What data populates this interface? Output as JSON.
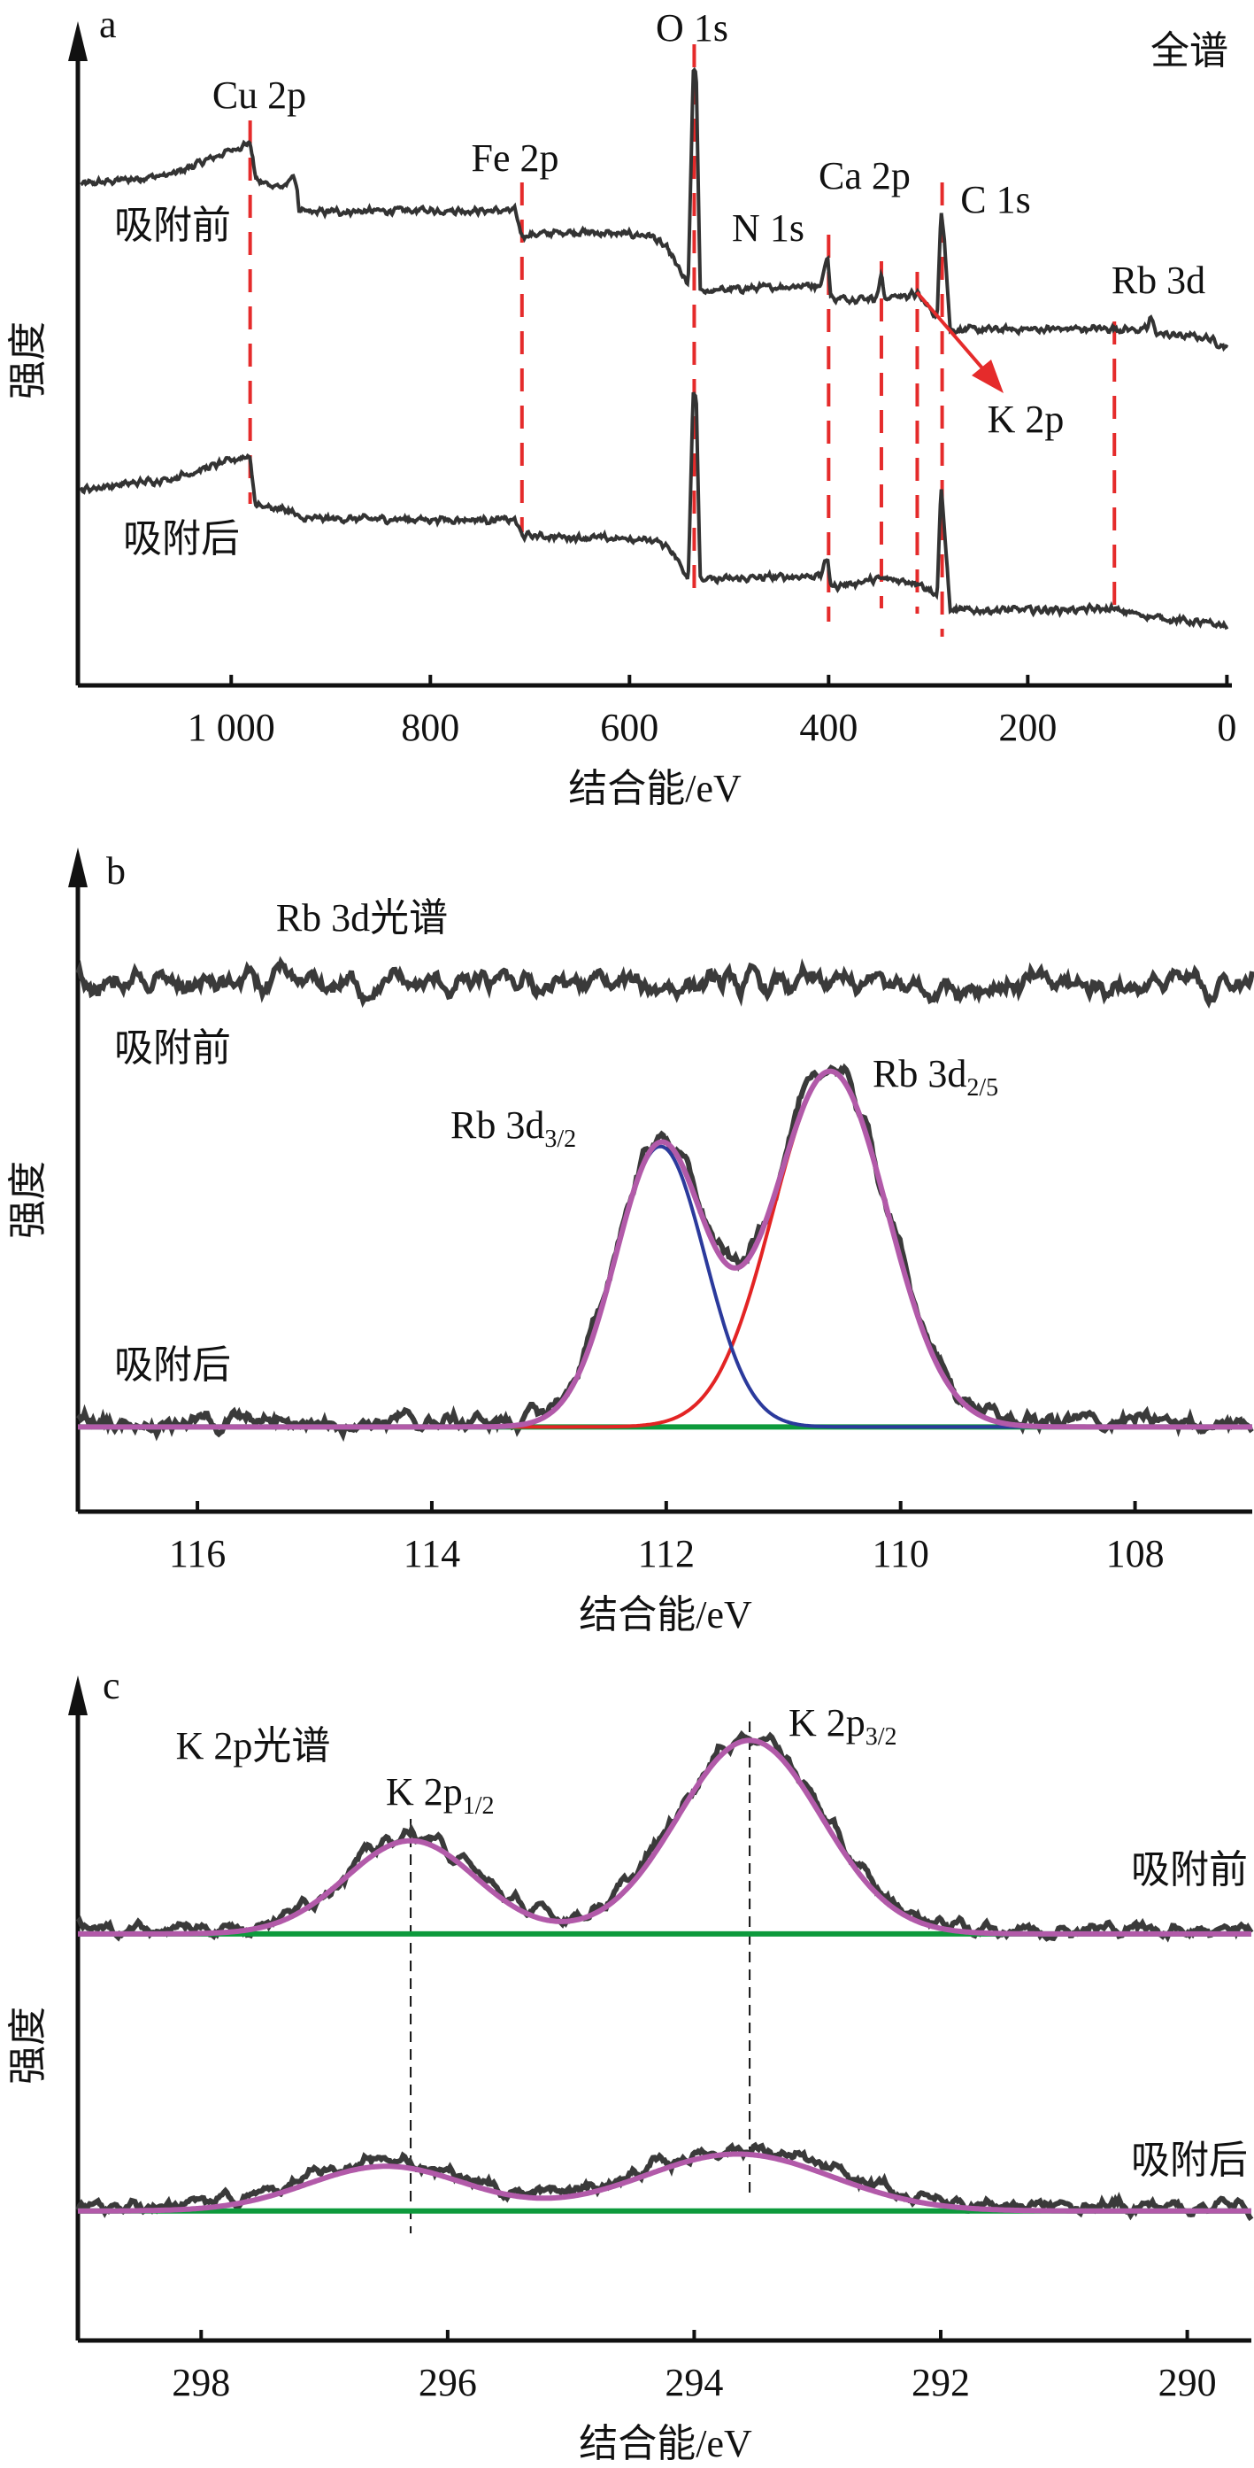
{
  "chart_data": [
    {
      "panel": "a",
      "type": "line",
      "title": "全谱",
      "xlabel": "结合能/eV",
      "ylabel": "强度",
      "xlim": [
        1154,
        -5
      ],
      "ylim": [
        0,
        100
      ],
      "x_reversed": true,
      "grid": false,
      "xticks": [
        1000,
        800,
        600,
        400,
        200,
        0
      ],
      "xtick_labels": [
        "1 000",
        "800",
        "600",
        "400",
        "200",
        "0"
      ],
      "colors": {
        "trace": "#333333",
        "marker_line": "#e52b2b",
        "arrow": "#e52b2b"
      },
      "series": [
        {
          "name": "吸附前",
          "points": [
            [
              1151,
              77.5
            ],
            [
              1060,
              79
            ],
            [
              989,
              83.5
            ],
            [
              981,
              84
            ],
            [
              976,
              79
            ],
            [
              973,
              77.9
            ],
            [
              945,
              77
            ],
            [
              940,
              79
            ],
            [
              934,
              77.5
            ],
            [
              932,
              73.2
            ],
            [
              800,
              73.5
            ],
            [
              715,
              73.4
            ],
            [
              708,
              69.6
            ],
            [
              660,
              70.2
            ],
            [
              578,
              69.6
            ],
            [
              561,
              67.3
            ],
            [
              541,
              61.8
            ],
            [
              536,
              94.9
            ],
            [
              533,
              94.9
            ],
            [
              529,
              61
            ],
            [
              408,
              62
            ],
            [
              401,
              66.5
            ],
            [
              398,
              60.5
            ],
            [
              396,
              59.8
            ],
            [
              352,
              60
            ],
            [
              347,
              63.5
            ],
            [
              344,
              60
            ],
            [
              311,
              60.5
            ],
            [
              291,
              57
            ],
            [
              287,
              73.6
            ],
            [
              284,
              70
            ],
            [
              278,
              55
            ],
            [
              117,
              55.2
            ],
            [
              80,
              55
            ],
            [
              77,
              57
            ],
            [
              70,
              54.4
            ],
            [
              20,
              53.8
            ],
            [
              0,
              52.3
            ]
          ]
        },
        {
          "name": "吸附后",
          "points": [
            [
              1151,
              30.3
            ],
            [
              1060,
              32
            ],
            [
              989,
              35.3
            ],
            [
              981,
              35.5
            ],
            [
              976,
              28
            ],
            [
              940,
              27
            ],
            [
              932,
              25.8
            ],
            [
              715,
              25.6
            ],
            [
              708,
              23.2
            ],
            [
              578,
              22.5
            ],
            [
              561,
              21.6
            ],
            [
              541,
              16.7
            ],
            [
              536,
              45.6
            ],
            [
              533,
              45
            ],
            [
              529,
              16.3
            ],
            [
              408,
              17
            ],
            [
              401,
              19.9
            ],
            [
              398,
              15.5
            ],
            [
              396,
              15.3
            ],
            [
              347,
              16.5
            ],
            [
              311,
              16
            ],
            [
              291,
              14
            ],
            [
              287,
              30.7
            ],
            [
              284,
              25
            ],
            [
              278,
              11.6
            ],
            [
              117,
              11.8
            ],
            [
              70,
              10.5
            ],
            [
              0,
              9.2
            ]
          ]
        }
      ],
      "peak_markers": [
        {
          "label": "Cu 2p",
          "ev": 981
        },
        {
          "label": "Fe 2p",
          "ev": 708
        },
        {
          "label": "O 1s",
          "ev": 535
        },
        {
          "label": "N 1s",
          "ev": 400
        },
        {
          "label": "Ca 2p",
          "ev": 347
        },
        {
          "label": "K 2p",
          "ev": 311
        },
        {
          "label": "C 1s",
          "ev": 286
        },
        {
          "label": "Rb 3d",
          "ev": 113
        }
      ]
    },
    {
      "panel": "b",
      "type": "line",
      "title": "Rb 3d光谱",
      "xlabel": "结合能/eV",
      "ylabel": "强度",
      "xlim": [
        117.02,
        107.0
      ],
      "ylim": [
        0,
        100
      ],
      "x_reversed": true,
      "grid": false,
      "xticks": [
        116,
        114,
        112,
        110,
        108
      ],
      "xtick_labels": [
        "116",
        "114",
        "112",
        "110",
        "108"
      ],
      "colors": {
        "raw": "#3a3a3a",
        "envelope": "#b25aa9",
        "component_1": "#2b3a9c",
        "component_2": "#e32424",
        "background": "#0d9a3c"
      },
      "series": [
        {
          "name": "吸附前",
          "baseline": 81.5,
          "peaks": []
        },
        {
          "name": "吸附后",
          "baseline": 13.1,
          "peaks": [
            {
              "label": "Rb 3d",
              "sub": "3/2",
              "center": 112.05,
              "height": 43.4,
              "fwhm": 0.9
            },
            {
              "label": "Rb 3d",
              "sub": "2/5",
              "center": 110.6,
              "height": 55.0,
              "fwhm": 1.15
            }
          ]
        }
      ]
    },
    {
      "panel": "c",
      "type": "line",
      "title": "K 2p光谱",
      "xlabel": "结合能/eV",
      "ylabel": "强度",
      "xlim": [
        299.0,
        289.48
      ],
      "ylim": [
        0,
        100
      ],
      "x_reversed": true,
      "grid": false,
      "xticks": [
        298,
        296,
        294,
        292,
        290
      ],
      "xtick_labels": [
        "298",
        "296",
        "294",
        "292",
        "290"
      ],
      "colors": {
        "raw": "#3a3a3a",
        "envelope": "#b25aa9",
        "background": "#0d9a3c",
        "guide": "#111111"
      },
      "series": [
        {
          "name": "吸附前",
          "baseline": 62.8,
          "peaks": [
            {
              "label": "K 2p",
              "sub": "1/2",
              "center": 296.3,
              "height": 14.4,
              "fwhm": 1.24
            },
            {
              "label": "K 2p",
              "sub": "3/2",
              "center": 293.55,
              "height": 29.9,
              "fwhm": 1.37
            }
          ]
        },
        {
          "name": "吸附后",
          "baseline": 20.0,
          "peaks": [
            {
              "center": 296.5,
              "height": 6.9,
              "fwhm": 1.5
            },
            {
              "center": 293.65,
              "height": 8.8,
              "fwhm": 1.8
            }
          ]
        }
      ],
      "guide_lines_ev": [
        296.3,
        293.55
      ]
    }
  ]
}
